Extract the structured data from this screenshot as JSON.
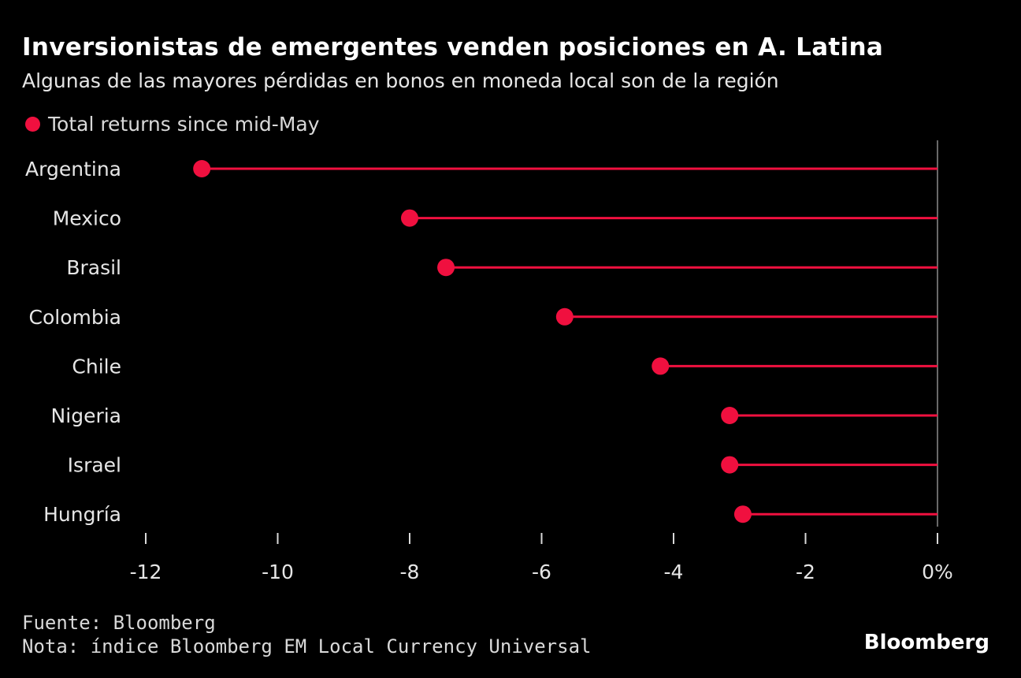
{
  "header": {
    "title": "Inversionistas de emergentes venden posiciones en A. Latina",
    "subtitle": "Algunas de las mayores pérdidas en bonos en moneda local son de la región"
  },
  "footer": {
    "source": "Fuente: Bloomberg",
    "note": "Nota: índice Bloomberg EM Local Currency Universal",
    "logo": "Bloomberg"
  },
  "chart_data": {
    "type": "lollipop",
    "title": "Inversionistas de emergentes venden posiciones en A. Latina",
    "subtitle": "Algunas de las mayores pérdidas en bonos en moneda local son de la región",
    "legend": {
      "position": "top-left",
      "entries": [
        "Total returns since mid-May"
      ]
    },
    "series": [
      {
        "name": "Total returns since mid-May",
        "color": "#f0103f"
      }
    ],
    "categories": [
      "Argentina",
      "Mexico",
      "Brasil",
      "Colombia",
      "Chile",
      "Nigeria",
      "Israel",
      "Hungría"
    ],
    "values": [
      -11.15,
      -8.0,
      -7.45,
      -5.65,
      -4.2,
      -3.15,
      -3.15,
      -2.95
    ],
    "xlim": [
      -12,
      0
    ],
    "xticks": [
      -12,
      -10,
      -8,
      -6,
      -4,
      -2,
      0
    ],
    "xtick_labels": [
      "-12",
      "-10",
      "-8",
      "-6",
      "-4",
      "-2",
      "0%"
    ],
    "grid": false,
    "colors": {
      "background": "#000000",
      "marker": "#f0103f",
      "axis": "#8c8c8c",
      "text": "#e6e6e6"
    }
  }
}
